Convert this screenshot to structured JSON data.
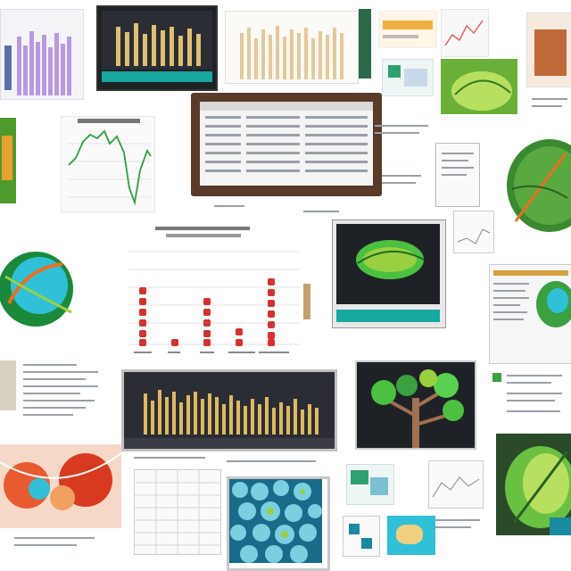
{
  "colors": {
    "background": "#ffffff",
    "purple": "#b38ee0",
    "gold": "#e0b860",
    "green": "#3aa040",
    "lime": "#9ad040",
    "teal": "#18a8a0",
    "red": "#d83030",
    "orange": "#e87020",
    "cyan": "#30c0d8",
    "frame_brown": "#5a3a28",
    "dark_screen": "#1e2226"
  },
  "panels": [
    {
      "name": "purple-bar-panel",
      "icon": "bar-chart-icon"
    },
    {
      "name": "gold-bar-monitor",
      "icon": "monitor-icon"
    },
    {
      "name": "tan-bar-panel",
      "icon": "bar-chart-icon"
    },
    {
      "name": "green-line-chart",
      "icon": "line-chart-icon"
    },
    {
      "name": "framed-table-screen",
      "icon": "table-icon"
    },
    {
      "name": "red-dot-chart",
      "icon": "dot-chart-icon"
    },
    {
      "name": "leaf-monitor",
      "icon": "leaf-icon"
    },
    {
      "name": "wide-gold-bar-screen",
      "icon": "bar-chart-icon"
    },
    {
      "name": "tree-image-panel",
      "icon": "tree-icon"
    },
    {
      "name": "cell-mosaic-panel",
      "icon": "cells-icon"
    },
    {
      "name": "red-texture-panel",
      "icon": "texture-icon"
    },
    {
      "name": "green-globe-panel",
      "icon": "globe-icon"
    }
  ]
}
